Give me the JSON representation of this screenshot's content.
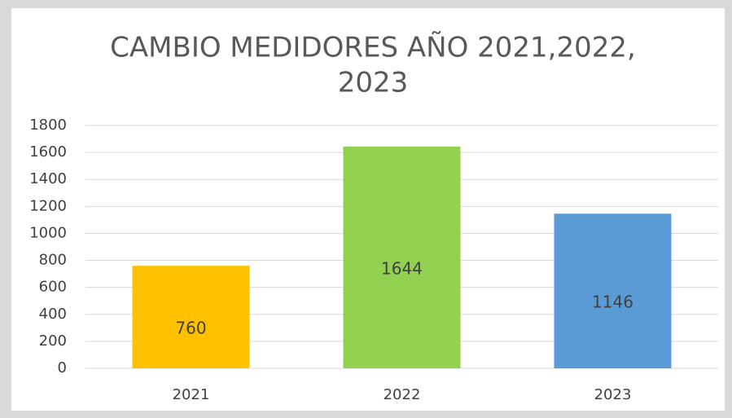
{
  "chart_data": {
    "type": "bar",
    "title": [
      "CAMBIO MEDIDORES AÑO  2021,2022,",
      "2023"
    ],
    "categories": [
      "2021",
      "2022",
      "2023"
    ],
    "values": [
      760,
      1644,
      1146
    ],
    "colors": [
      "#ffc000",
      "#92d050",
      "#5b9bd5"
    ],
    "ylim": [
      0,
      1800
    ],
    "yticks": [
      0,
      200,
      400,
      600,
      800,
      1000,
      1200,
      1400,
      1600,
      1800
    ],
    "grid": true
  }
}
